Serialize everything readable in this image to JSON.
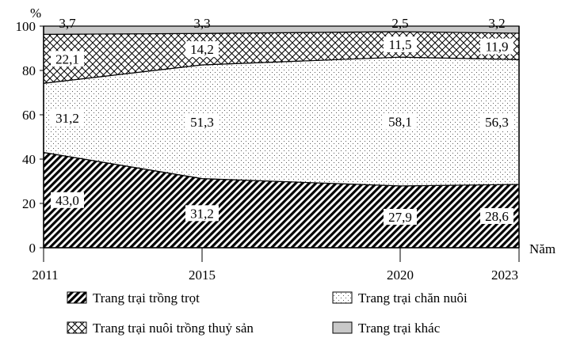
{
  "chart_data": {
    "type": "area",
    "stacked": "percent",
    "y_unit": "%",
    "x_unit": "Năm",
    "x": [
      2011,
      2015,
      2020,
      2023
    ],
    "ylim": [
      0,
      100
    ],
    "yticks": [
      0,
      20,
      40,
      60,
      80,
      100
    ],
    "xtick_labels": [
      "2011",
      "2015",
      "2020",
      "2023"
    ],
    "ytick_labels": [
      "0",
      "20",
      "40",
      "60",
      "80",
      "100"
    ],
    "grid": false,
    "legend_position": "bottom",
    "series": [
      {
        "name": "Trang trại trồng trọt",
        "pattern": "diagonal-dense",
        "values": [
          43.0,
          31.2,
          27.9,
          28.6
        ],
        "labels": [
          "43,0",
          "31,2",
          "27,9",
          "28,6"
        ]
      },
      {
        "name": "Trang trại chăn nuôi",
        "pattern": "dots",
        "values": [
          31.2,
          51.3,
          58.1,
          56.3
        ],
        "labels": [
          "31,2",
          "51,3",
          "58,1",
          "56,3"
        ]
      },
      {
        "name": "Trang trại nuôi trồng thuỷ sản",
        "pattern": "crosshatch",
        "values": [
          22.1,
          14.2,
          11.5,
          11.9
        ],
        "labels": [
          "22,1",
          "14,2",
          "11,5",
          "11,9"
        ]
      },
      {
        "name": "Trang trại khác",
        "pattern": "gray",
        "color": "#c8c8c8",
        "values": [
          3.7,
          3.3,
          2.5,
          3.2
        ],
        "labels": [
          "3,7",
          "3,3",
          "2,5",
          "3,2"
        ]
      }
    ]
  }
}
